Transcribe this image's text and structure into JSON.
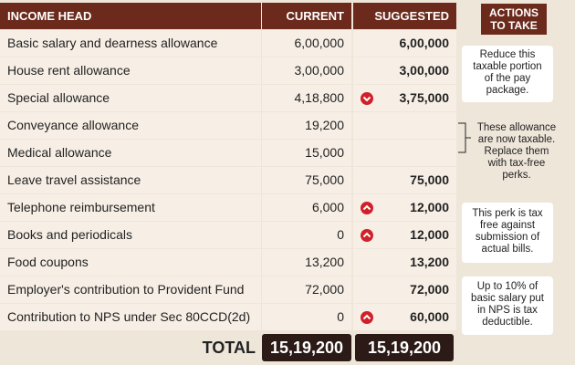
{
  "table": {
    "header": [
      "INCOME HEAD",
      "CURRENT",
      "SUGGESTED"
    ],
    "rows": [
      {
        "head": "Basic salary and dearness allowance",
        "current": "6,00,000",
        "suggested": "6,00,000"
      },
      {
        "head": "House rent allowance",
        "current": "3,00,000",
        "suggested": "3,00,000"
      },
      {
        "head": "Special allowance",
        "current": "4,18,800",
        "suggested": "3,75,000"
      },
      {
        "head": "Conveyance allowance",
        "current": "19,200"
      },
      {
        "head": "Medical allowance",
        "current": "15,000"
      },
      {
        "head": "Leave travel assistance",
        "current": "75,000",
        "suggested": "75,000"
      },
      {
        "head": "Telephone reimbursement",
        "current": "6,000",
        "suggested": "12,000"
      },
      {
        "head": "Books and periodicals",
        "current": "0",
        "suggested": "12,000"
      },
      {
        "head": "Food coupons",
        "current": "13,200",
        "suggested": "13,200"
      },
      {
        "head": "Employer's contribution to Provident Fund",
        "current": "72,000",
        "suggested": "72,000"
      },
      {
        "head": "Contribution to NPS under Sec 80CCD(2d)",
        "current": "0",
        "suggested": "60,000"
      }
    ],
    "total": {
      "label": "TOTAL",
      "current": "15,19,200",
      "suggested": "15,19,200"
    }
  },
  "actions": {
    "title": "ACTIONS TO TAKE",
    "notes": [
      "Reduce this taxable portion of the pay package.",
      "These allowance are now taxable. Replace them with tax-free perks.",
      "This perk is tax free against submission of actual bills.",
      "Up to 10% of basic salary put in NPS is tax deductible."
    ]
  }
}
